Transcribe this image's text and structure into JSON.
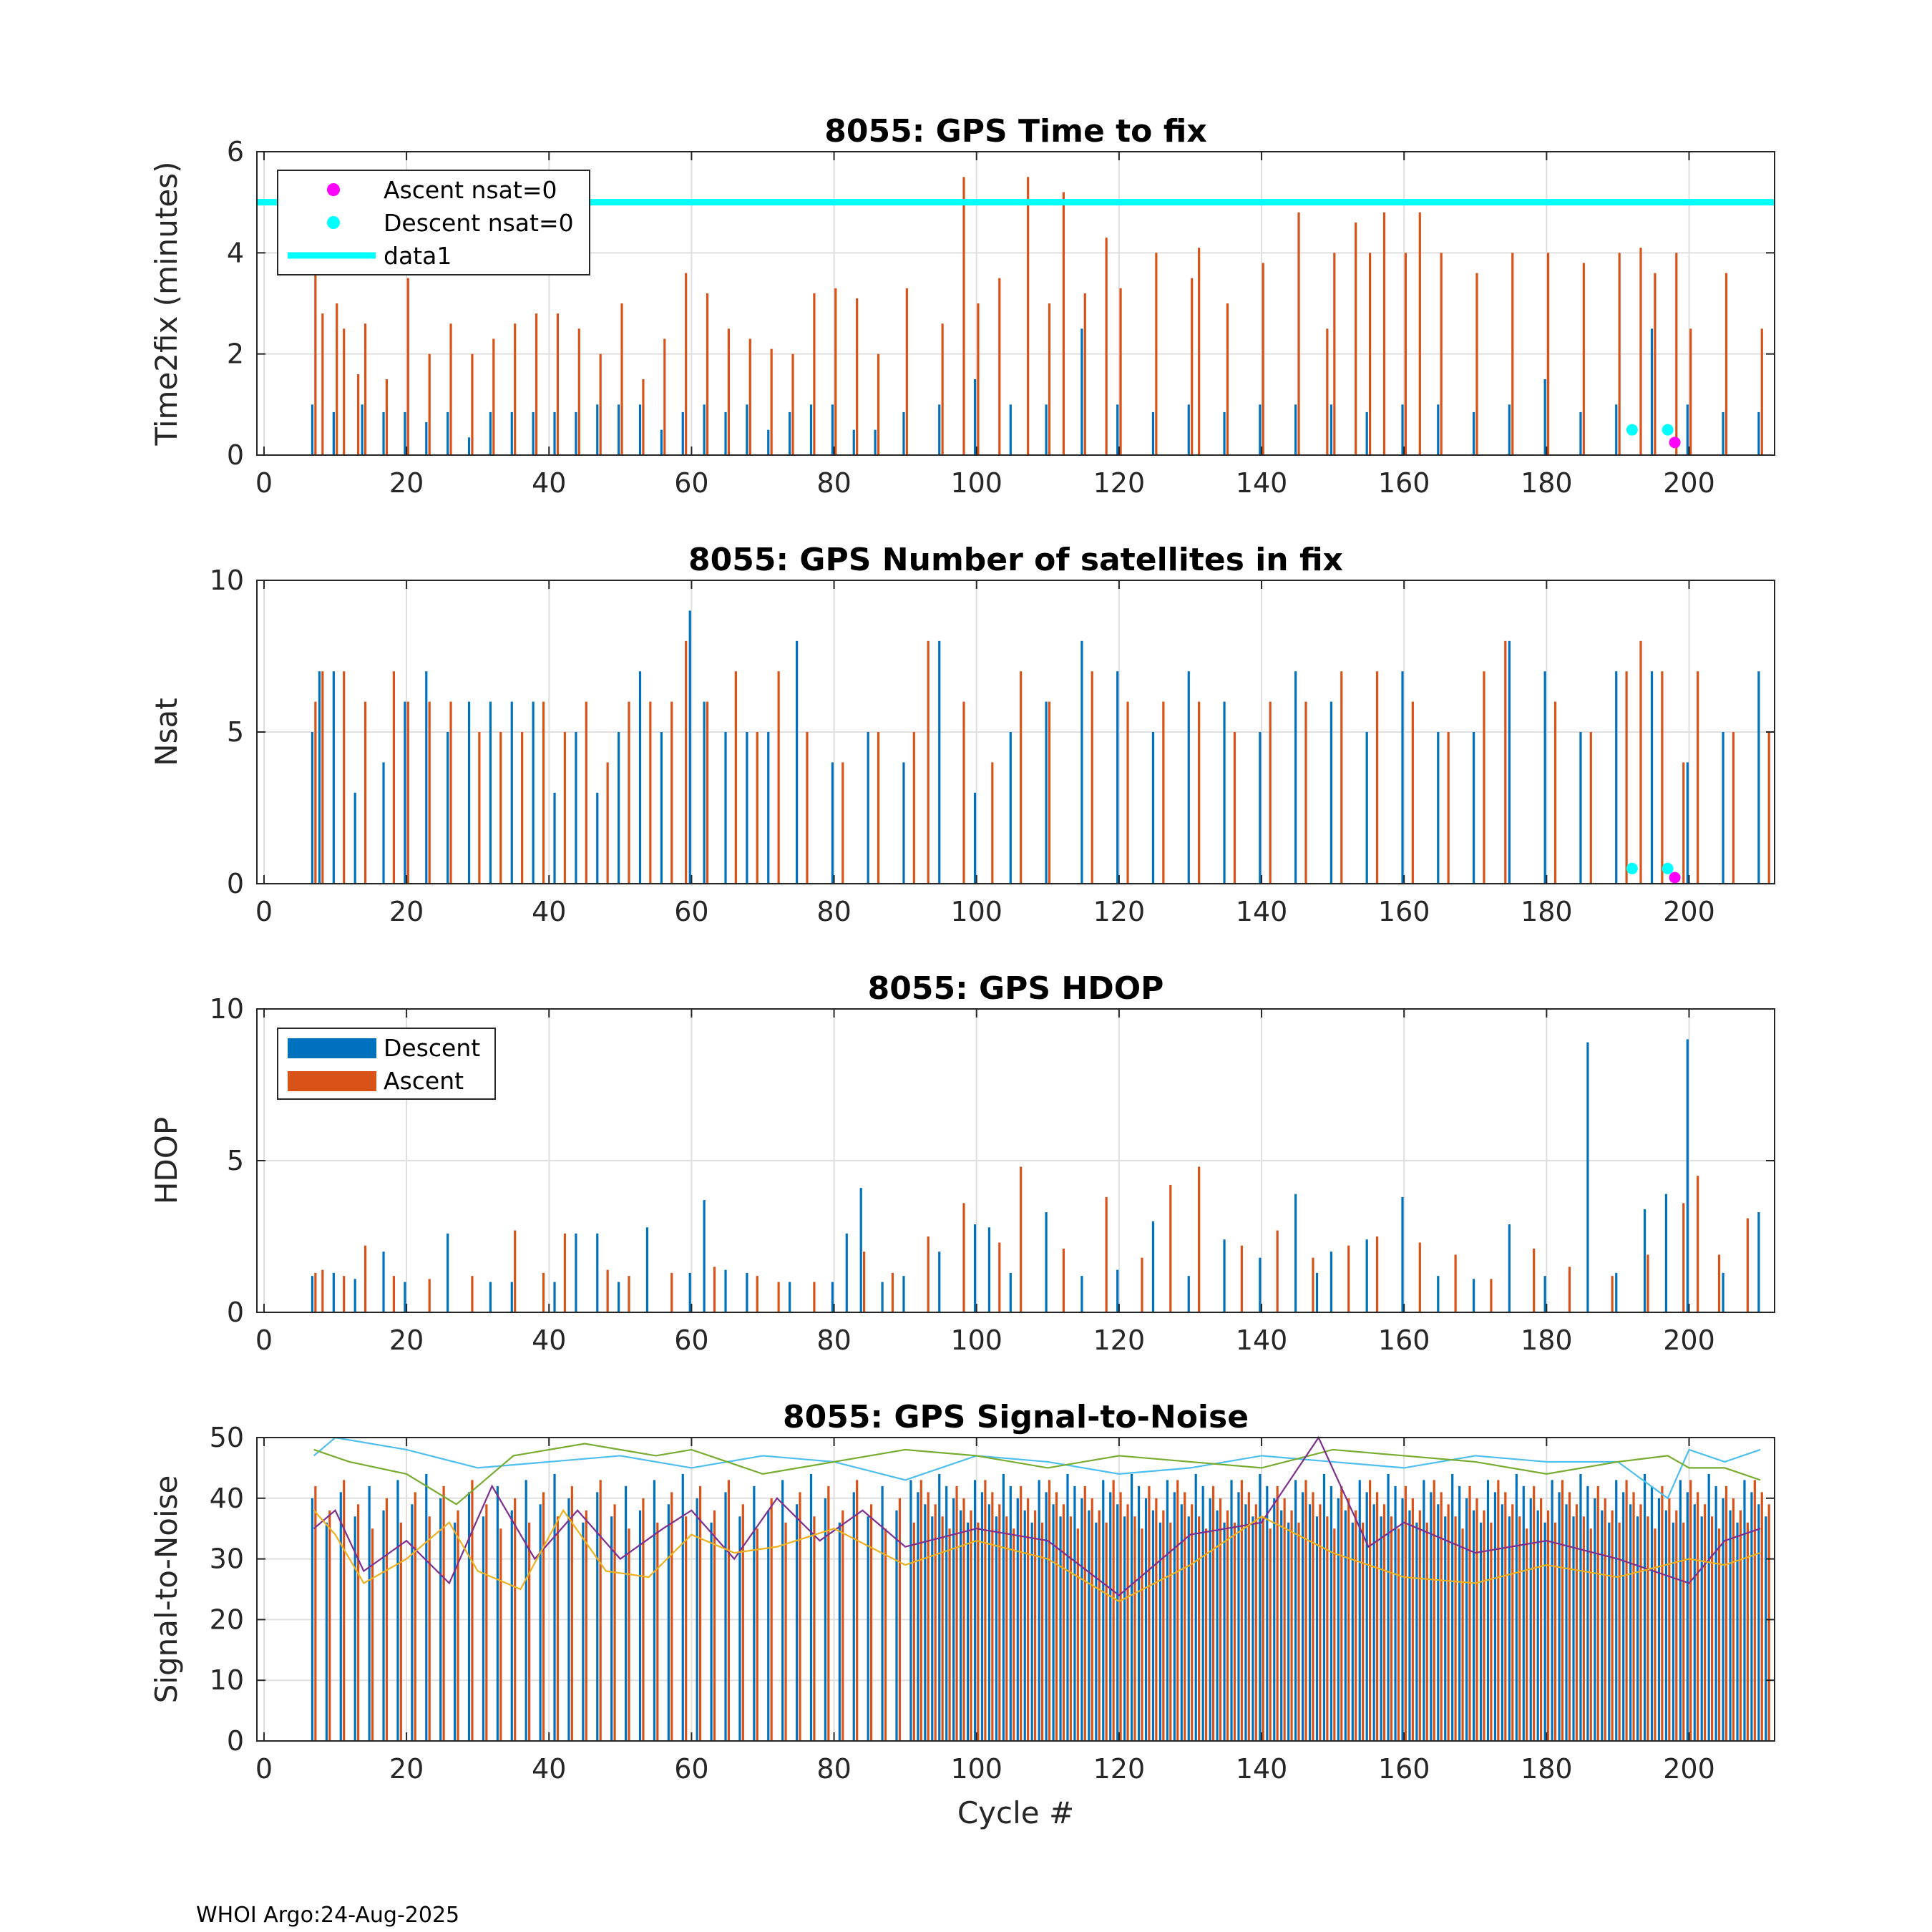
{
  "chart_data": [
    {
      "type": "bar",
      "title": "8055: GPS Time to fix",
      "xlabel": "",
      "ylabel": "Time2fix (minutes)",
      "xlim": [
        -1,
        212
      ],
      "ylim": [
        0,
        6
      ],
      "xticks": [
        0,
        20,
        40,
        60,
        80,
        100,
        120,
        140,
        160,
        180,
        200
      ],
      "yticks": [
        0,
        2,
        4,
        6
      ],
      "grid": true,
      "legend_position": "top-left",
      "legend": [
        "Ascent nsat=0",
        "Descent nsat=0",
        "data1"
      ],
      "reference_line": {
        "name": "data1",
        "y": 5,
        "color": "#00FFFF"
      },
      "markers": [
        {
          "name": "Ascent nsat=0",
          "color": "#FF00FF",
          "points": [
            [
              198,
              0.25
            ]
          ]
        },
        {
          "name": "Descent nsat=0",
          "color": "#00FFFF",
          "points": [
            [
              192,
              0.5
            ],
            [
              197,
              0.5
            ]
          ]
        }
      ],
      "series": [
        {
          "name": "Descent",
          "color": "#0072BD",
          "cycles": [
            7,
            10,
            14,
            17,
            20,
            23,
            26,
            29,
            32,
            35,
            38,
            41,
            44,
            47,
            50,
            53,
            56,
            59,
            62,
            65,
            68,
            71,
            74,
            77,
            80,
            83,
            86,
            90,
            95,
            100,
            105,
            110,
            115,
            120,
            125,
            130,
            135,
            140,
            145,
            150,
            155,
            160,
            165,
            170,
            175,
            180,
            185,
            190,
            195,
            200,
            205,
            210
          ],
          "values": [
            1.0,
            0.85,
            1.0,
            0.85,
            0.85,
            0.65,
            0.85,
            0.35,
            0.85,
            0.85,
            0.85,
            0.85,
            0.85,
            1.0,
            1.0,
            1.0,
            0.5,
            0.85,
            1.0,
            0.85,
            1.0,
            0.5,
            0.85,
            1.0,
            1.0,
            0.5,
            0.5,
            0.85,
            1.0,
            1.5,
            1.0,
            1.0,
            2.5,
            1.0,
            0.85,
            1.0,
            0.85,
            1.0,
            1.0,
            1.0,
            0.85,
            1.0,
            1.0,
            0.85,
            1.0,
            1.5,
            0.85,
            1.0,
            2.5,
            1.0,
            0.85,
            0.85
          ]
        },
        {
          "name": "Ascent",
          "color": "#D95319",
          "cycles": [
            7,
            8,
            10,
            11,
            13,
            14,
            17,
            20,
            23,
            26,
            29,
            32,
            35,
            38,
            41,
            44,
            47,
            50,
            53,
            56,
            59,
            62,
            65,
            68,
            71,
            74,
            77,
            80,
            83,
            86,
            90,
            95,
            98,
            100,
            103,
            107,
            110,
            112,
            115,
            118,
            120,
            125,
            130,
            131,
            135,
            140,
            145,
            149,
            150,
            153,
            155,
            157,
            160,
            162,
            165,
            170,
            175,
            180,
            185,
            190,
            193,
            195,
            198,
            200,
            205,
            210
          ],
          "values": [
            3.6,
            2.8,
            3.0,
            2.5,
            1.6,
            2.6,
            1.5,
            3.5,
            2.0,
            2.6,
            2.0,
            2.3,
            2.6,
            2.8,
            2.8,
            2.5,
            2.0,
            3.0,
            1.5,
            2.3,
            3.6,
            3.2,
            2.5,
            2.3,
            2.1,
            2.0,
            3.2,
            3.3,
            3.1,
            2.0,
            3.3,
            2.6,
            5.5,
            3.0,
            3.5,
            5.5,
            3.0,
            5.2,
            3.2,
            4.3,
            3.3,
            4.0,
            3.5,
            4.1,
            3.0,
            3.8,
            4.8,
            2.5,
            4.0,
            4.6,
            4.0,
            4.8,
            4.0,
            4.8,
            4.0,
            3.6,
            4.0,
            4.0,
            3.8,
            4.0,
            4.1,
            3.6,
            4.0,
            2.5,
            3.6,
            2.5
          ]
        }
      ]
    },
    {
      "type": "bar",
      "title": "8055: GPS Number of satellites in fix",
      "xlabel": "",
      "ylabel": "Nsat",
      "xlim": [
        -1,
        212
      ],
      "ylim": [
        0,
        10
      ],
      "xticks": [
        0,
        20,
        40,
        60,
        80,
        100,
        120,
        140,
        160,
        180,
        200
      ],
      "yticks": [
        0,
        5,
        10
      ],
      "grid": true,
      "markers": [
        {
          "name": "Ascent nsat=0",
          "color": "#FF00FF",
          "points": [
            [
              198,
              0.2
            ]
          ]
        },
        {
          "name": "Descent nsat=0",
          "color": "#00FFFF",
          "points": [
            [
              192,
              0.5
            ],
            [
              197,
              0.5
            ]
          ]
        }
      ],
      "series": [
        {
          "name": "Descent",
          "color": "#0072BD",
          "cycles": [
            7,
            8,
            10,
            13,
            17,
            20,
            23,
            26,
            29,
            32,
            35,
            38,
            41,
            44,
            47,
            50,
            53,
            56,
            60,
            62,
            65,
            68,
            71,
            75,
            80,
            85,
            90,
            95,
            100,
            105,
            110,
            115,
            120,
            125,
            130,
            135,
            140,
            145,
            150,
            155,
            160,
            165,
            170,
            175,
            180,
            185,
            190,
            195,
            200,
            205,
            210
          ],
          "values": [
            5,
            7,
            7,
            3,
            4,
            6,
            7,
            5,
            6,
            6,
            6,
            6,
            3,
            5,
            3,
            5,
            7,
            5,
            9,
            6,
            5,
            5,
            5,
            8,
            4,
            5,
            4,
            8,
            3,
            5,
            6,
            8,
            7,
            5,
            7,
            6,
            5,
            7,
            6,
            5,
            7,
            5,
            5,
            8,
            7,
            5,
            7,
            7,
            4,
            5,
            7
          ]
        },
        {
          "name": "Ascent",
          "color": "#D95319",
          "cycles": [
            7,
            8,
            11,
            14,
            18,
            20,
            23,
            26,
            30,
            33,
            36,
            39,
            42,
            45,
            48,
            51,
            54,
            57,
            59,
            62,
            66,
            69,
            72,
            76,
            81,
            86,
            91,
            93,
            98,
            102,
            106,
            110,
            116,
            121,
            126,
            131,
            136,
            141,
            146,
            151,
            156,
            161,
            166,
            171,
            174,
            181,
            186,
            191,
            193,
            196,
            199,
            201,
            206,
            211
          ],
          "values": [
            6,
            7,
            7,
            6,
            7,
            6,
            6,
            6,
            5,
            5,
            5,
            6,
            5,
            6,
            4,
            6,
            6,
            6,
            8,
            6,
            7,
            5,
            7,
            5,
            4,
            5,
            5,
            8,
            6,
            4,
            7,
            6,
            7,
            6,
            6,
            6,
            5,
            6,
            6,
            7,
            7,
            6,
            5,
            7,
            8,
            6,
            5,
            7,
            8,
            7,
            4,
            7,
            5,
            5
          ]
        }
      ]
    },
    {
      "type": "bar",
      "title": "8055: GPS HDOP",
      "xlabel": "",
      "ylabel": "HDOP",
      "xlim": [
        -1,
        212
      ],
      "ylim": [
        0,
        10
      ],
      "xticks": [
        0,
        20,
        40,
        60,
        80,
        100,
        120,
        140,
        160,
        180,
        200
      ],
      "yticks": [
        0,
        5,
        10
      ],
      "grid": true,
      "legend_position": "top-left",
      "legend": [
        "Descent",
        "Ascent"
      ],
      "series": [
        {
          "name": "Descent",
          "color": "#0072BD",
          "cycles": [
            7,
            10,
            13,
            17,
            20,
            26,
            32,
            35,
            41,
            44,
            47,
            50,
            54,
            60,
            62,
            65,
            68,
            74,
            80,
            82,
            84,
            87,
            90,
            95,
            100,
            102,
            105,
            110,
            115,
            120,
            125,
            130,
            135,
            140,
            145,
            148,
            150,
            155,
            160,
            165,
            170,
            175,
            180,
            186,
            190,
            194,
            197,
            200,
            205,
            210
          ],
          "values": [
            1.2,
            1.3,
            1.1,
            2.0,
            1.0,
            2.6,
            1.0,
            1.0,
            1.0,
            2.6,
            2.6,
            1.0,
            2.8,
            1.3,
            3.7,
            1.4,
            1.3,
            1.0,
            1.0,
            2.6,
            4.1,
            1.0,
            1.2,
            2.0,
            2.9,
            2.8,
            1.3,
            3.3,
            1.2,
            1.4,
            3.0,
            1.2,
            2.4,
            1.8,
            3.9,
            1.3,
            2.0,
            2.4,
            3.8,
            1.2,
            1.1,
            2.9,
            1.2,
            8.9,
            1.3,
            3.4,
            3.9,
            9.0,
            1.3,
            3.3
          ]
        },
        {
          "name": "Ascent",
          "color": "#D95319",
          "cycles": [
            7,
            8,
            11,
            14,
            18,
            23,
            29,
            35,
            39,
            42,
            48,
            51,
            57,
            63,
            69,
            72,
            77,
            84,
            88,
            93,
            98,
            103,
            106,
            112,
            118,
            123,
            127,
            131,
            137,
            142,
            147,
            152,
            156,
            162,
            167,
            172,
            178,
            183,
            189,
            194,
            199,
            201,
            204,
            208
          ],
          "values": [
            1.3,
            1.4,
            1.2,
            2.2,
            1.2,
            1.1,
            1.2,
            2.7,
            1.3,
            2.6,
            1.4,
            1.2,
            1.3,
            1.5,
            1.2,
            1.0,
            1.0,
            2.0,
            1.3,
            2.5,
            3.6,
            2.3,
            4.8,
            2.1,
            3.8,
            1.8,
            4.2,
            4.8,
            2.2,
            2.7,
            1.8,
            2.2,
            2.5,
            2.3,
            1.9,
            1.1,
            2.1,
            1.5,
            1.2,
            1.9,
            3.6,
            4.5,
            1.9,
            3.1
          ]
        }
      ]
    },
    {
      "type": "bar",
      "title": "8055: GPS Signal-to-Noise",
      "xlabel": "Cycle #",
      "ylabel": "Signal-to-Noise",
      "xlim": [
        -1,
        212
      ],
      "ylim": [
        0,
        50
      ],
      "xticks": [
        0,
        20,
        40,
        60,
        80,
        100,
        120,
        140,
        160,
        180,
        200
      ],
      "yticks": [
        0,
        10,
        20,
        30,
        40,
        50
      ],
      "grid": true,
      "bar_series": [
        {
          "name": "Descent",
          "color": "#0072BD",
          "base": 40,
          "spread": 4
        },
        {
          "name": "Ascent",
          "color": "#D95319",
          "base": 39,
          "spread": 4
        }
      ],
      "line_series": [
        {
          "name": "max-cyan",
          "color": "#4DBEEE",
          "x": [
            7,
            10,
            20,
            30,
            40,
            50,
            60,
            70,
            80,
            90,
            100,
            110,
            120,
            130,
            140,
            150,
            160,
            170,
            180,
            190,
            197,
            200,
            205,
            210
          ],
          "y": [
            47,
            50,
            48,
            45,
            46,
            47,
            45,
            47,
            46,
            43,
            47,
            46,
            44,
            45,
            47,
            46,
            45,
            47,
            46,
            46,
            40,
            48,
            46,
            48
          ]
        },
        {
          "name": "max-green",
          "color": "#77AC30",
          "x": [
            7,
            12,
            20,
            27,
            35,
            45,
            55,
            60,
            70,
            80,
            90,
            100,
            110,
            120,
            130,
            140,
            150,
            160,
            170,
            180,
            190,
            197,
            200,
            205,
            210
          ],
          "y": [
            48,
            46,
            44,
            39,
            47,
            49,
            47,
            48,
            44,
            46,
            48,
            47,
            45,
            47,
            46,
            45,
            48,
            47,
            46,
            44,
            46,
            47,
            45,
            45,
            43
          ]
        },
        {
          "name": "mean-purple",
          "color": "#7E2F8E",
          "x": [
            7,
            10,
            14,
            20,
            26,
            32,
            38,
            44,
            50,
            56,
            60,
            66,
            72,
            78,
            84,
            90,
            100,
            110,
            120,
            130,
            140,
            148,
            155,
            160,
            170,
            180,
            190,
            200,
            205,
            210
          ],
          "y": [
            35,
            38,
            28,
            33,
            26,
            42,
            30,
            38,
            30,
            35,
            38,
            30,
            40,
            33,
            38,
            32,
            35,
            33,
            24,
            34,
            36,
            50,
            32,
            36,
            31,
            33,
            30,
            26,
            33,
            35
          ]
        },
        {
          "name": "mean-yellow",
          "color": "#EDB120",
          "x": [
            7,
            10,
            14,
            20,
            26,
            30,
            36,
            42,
            48,
            54,
            60,
            66,
            72,
            80,
            90,
            100,
            110,
            120,
            130,
            140,
            150,
            160,
            170,
            180,
            190,
            200,
            205,
            210
          ],
          "y": [
            38,
            34,
            26,
            30,
            36,
            28,
            25,
            38,
            28,
            27,
            34,
            31,
            32,
            35,
            29,
            33,
            30,
            23,
            29,
            37,
            31,
            27,
            26,
            29,
            27,
            30,
            29,
            31
          ]
        }
      ]
    }
  ],
  "footer": "WHOI Argo:24-Aug-2025"
}
